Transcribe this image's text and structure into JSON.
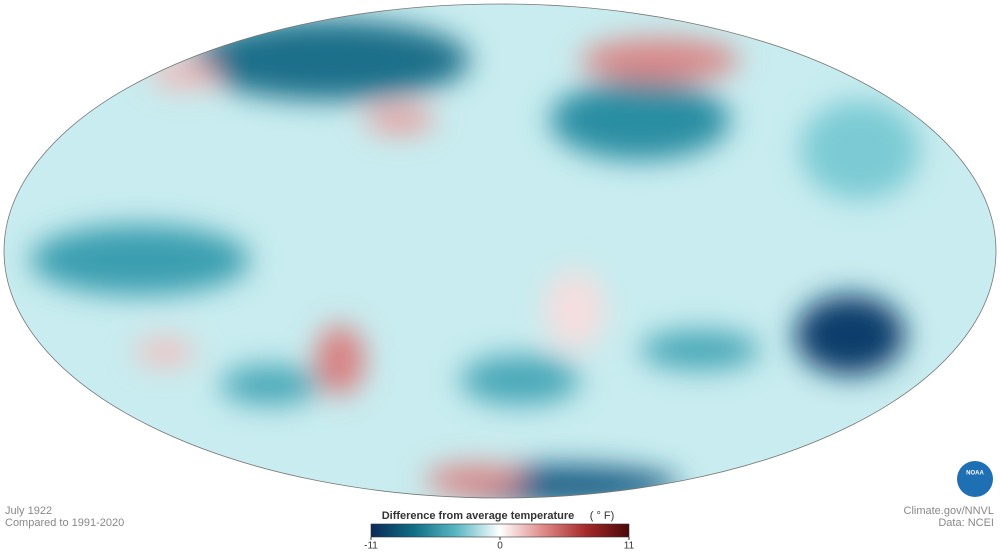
{
  "map": {
    "title": "July 1922",
    "subtitle": "Compared to 1991-2020",
    "credit": "Climate.gov/NNVL",
    "source": "Data: NCEI",
    "logo": "NOAA",
    "legend": {
      "title": "Difference from average temperature",
      "unit": "( ° F)",
      "range": [
        -11,
        11
      ],
      "ticks": [
        -11,
        0,
        11
      ],
      "colors": [
        "#0b2a57",
        "#0f6f86",
        "#5bb8c4",
        "#ffffff",
        "#e08a8a",
        "#a52a2a",
        "#4a0808"
      ]
    }
  }
}
